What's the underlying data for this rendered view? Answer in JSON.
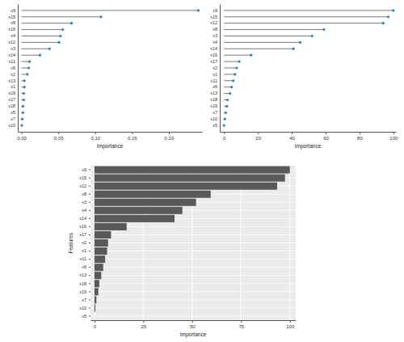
{
  "chart_data": [
    {
      "type": "lollipop",
      "orientation": "horizontal",
      "color": "#2f7fc1",
      "grid": false,
      "x_label": "Importance",
      "categories": [
        "x9",
        "x15",
        "x8",
        "x16",
        "x4",
        "x12",
        "x3",
        "x14",
        "x11",
        "x6",
        "x2",
        "x13",
        "x1",
        "x19",
        "x17",
        "x18",
        "x5",
        "x7",
        "x10"
      ],
      "values": [
        0.24,
        0.108,
        0.068,
        0.056,
        0.053,
        0.051,
        0.038,
        0.025,
        0.011,
        0.01,
        0.008,
        0.004,
        0.004,
        0.003,
        0.003,
        0.002,
        0.002,
        0.001,
        0.0005
      ],
      "xlim": [
        -0.005,
        0.245
      ],
      "xticks": [
        {
          "value": 0,
          "label": "0.00"
        },
        {
          "value": 0.05,
          "label": "0.05"
        },
        {
          "value": 0.1,
          "label": "0.10"
        },
        {
          "value": 0.15,
          "label": "0.15"
        },
        {
          "value": 0.2,
          "label": "0.20"
        }
      ]
    },
    {
      "type": "lollipop",
      "orientation": "horizontal",
      "color": "#2f7fc1",
      "grid": false,
      "x_label": "Importance",
      "categories": [
        "x9",
        "x15",
        "x12",
        "x8",
        "x3",
        "x4",
        "x14",
        "x16",
        "x17",
        "x2",
        "x1",
        "x11",
        "x6",
        "x13",
        "x18",
        "x19",
        "x7",
        "x10",
        "x5"
      ],
      "values": [
        100,
        97,
        94,
        59,
        52,
        45,
        41,
        16,
        9,
        7.5,
        6.5,
        5.5,
        4.5,
        3.5,
        2,
        1.7,
        1,
        0.5,
        0
      ],
      "xlim": [
        -2.5,
        101.5
      ],
      "xticks": [
        0,
        20,
        40,
        60,
        80,
        100
      ]
    },
    {
      "type": "bar",
      "orientation": "horizontal",
      "color": "#595959",
      "grid": true,
      "x_label": "Importance",
      "y_label": "Features",
      "categories": [
        "x9",
        "x15",
        "x12",
        "x8",
        "x3",
        "x4",
        "x14",
        "x16",
        "x17",
        "x2",
        "x1",
        "x11",
        "x6",
        "x13",
        "x18",
        "x19",
        "x7",
        "x10",
        "x5"
      ],
      "values": [
        100,
        97.5,
        93.5,
        59.5,
        52,
        45,
        41,
        16.5,
        8.5,
        7,
        6.5,
        5.5,
        4.5,
        3.5,
        2.5,
        2,
        1,
        0.5,
        0
      ],
      "xlim": [
        -2,
        103
      ],
      "xticks": [
        0,
        25,
        50,
        75,
        100
      ]
    }
  ]
}
